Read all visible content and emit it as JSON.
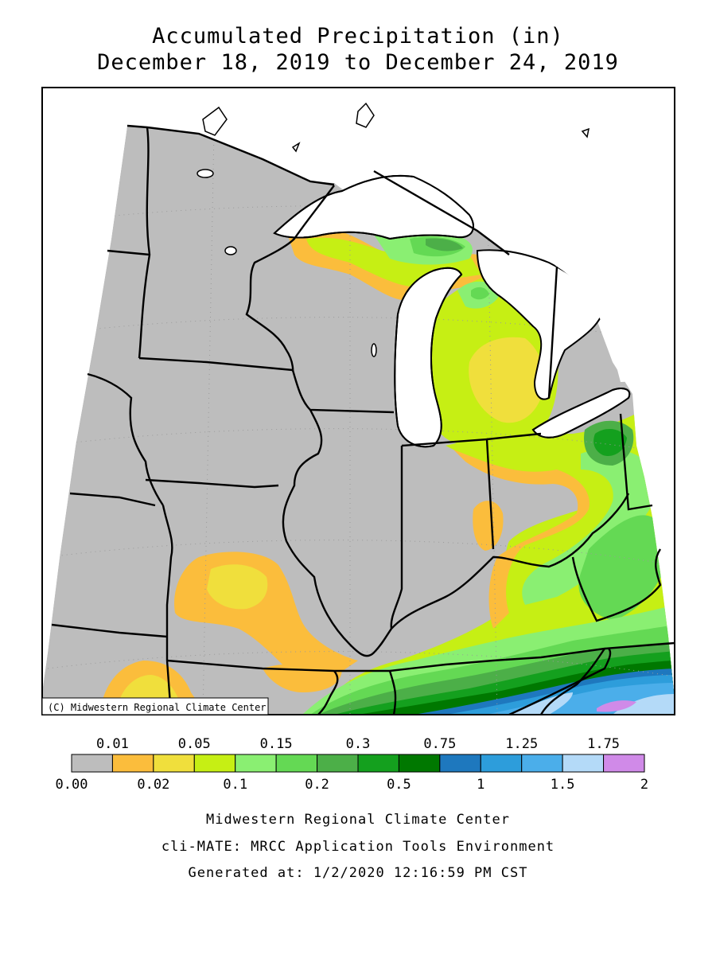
{
  "title": {
    "line1": "Accumulated Precipitation (in)",
    "line2": "December 18, 2019 to December 24, 2019"
  },
  "map": {
    "copyright": "(C) Midwestern Regional Climate Center",
    "colors": {
      "no_data": "#bdbdbd",
      "lake": "#ffffff",
      "border": "#000000"
    }
  },
  "legend": {
    "top_labels": [
      "0.01",
      "0.05",
      "0.15",
      "0.3",
      "0.75",
      "1.25",
      "1.75"
    ],
    "bottom_labels": [
      "0.00",
      "0.02",
      "0.1",
      "0.2",
      "0.5",
      "1",
      "1.5",
      "2"
    ],
    "colors": [
      "#bdbdbd",
      "#fbbd3c",
      "#f0df3c",
      "#c6ef14",
      "#8aef72",
      "#64d954",
      "#4caf48",
      "#14a01e",
      "#007800",
      "#1e78be",
      "#2d9ddb",
      "#4baeea",
      "#b4daf8",
      "#d08ae8"
    ]
  },
  "credits": [
    "Midwestern Regional Climate Center",
    "cli-MATE: MRCC Application Tools Environment",
    "Generated at: 1/2/2020 12:16:59 PM CST"
  ]
}
